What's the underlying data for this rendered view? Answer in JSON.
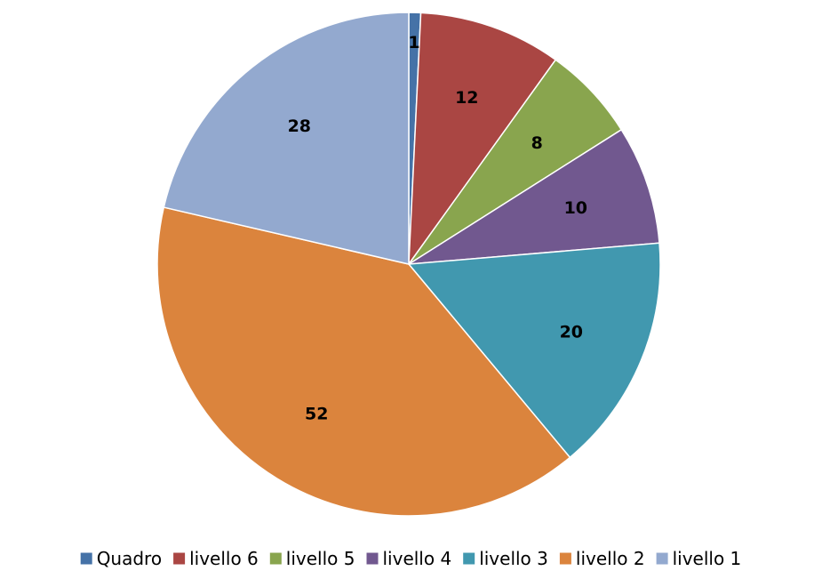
{
  "chart_data": {
    "type": "pie",
    "title": "",
    "categories": [
      "Quadro",
      "livello 6",
      "livello 5",
      "livello 4",
      "livello 3",
      "livello 2",
      "livello 1"
    ],
    "values": [
      1,
      12,
      8,
      10,
      20,
      52,
      28
    ],
    "colors": [
      "#4572A7",
      "#AA4643",
      "#89A54E",
      "#71588F",
      "#4198AF",
      "#DB843D",
      "#93A9CF"
    ],
    "start_angle": "12 o'clock",
    "direction": "clockwise",
    "data_labels": "inside slices",
    "legend": "bottom"
  }
}
